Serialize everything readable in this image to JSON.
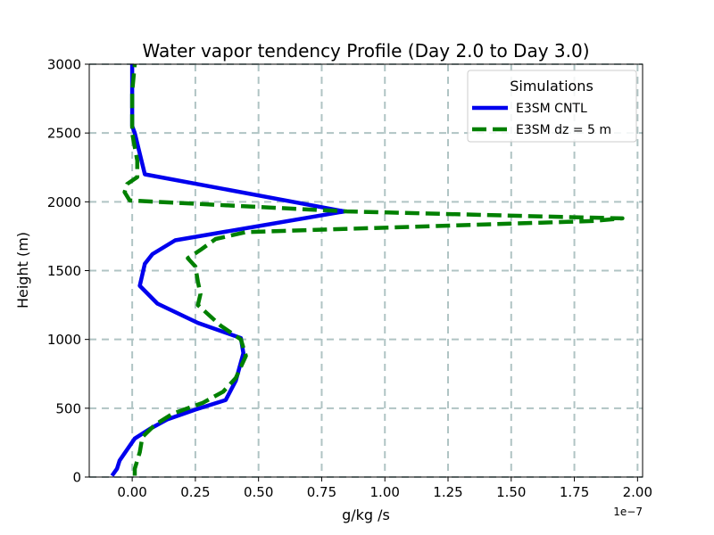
{
  "chart_data": {
    "type": "line",
    "title": "Water vapor tendency Profile (Day 2.0 to Day 3.0)",
    "xlabel": "g/kg /s",
    "ylabel": "Height (m)",
    "x_offset_label": "1e−7",
    "xlim": [
      -0.17,
      2.02
    ],
    "ylim": [
      0,
      3000
    ],
    "xticks": [
      0.0,
      0.25,
      0.5,
      0.75,
      1.0,
      1.25,
      1.5,
      1.75,
      2.0
    ],
    "xtick_labels": [
      "0.00",
      "0.25",
      "0.50",
      "0.75",
      "1.00",
      "1.25",
      "1.50",
      "1.75",
      "2.00"
    ],
    "yticks": [
      0,
      500,
      1000,
      1500,
      2000,
      2500,
      3000
    ],
    "ytick_labels": [
      "0",
      "500",
      "1000",
      "1500",
      "2000",
      "2500",
      "3000"
    ],
    "grid": true,
    "legend": {
      "title": "Simulations",
      "location": "upper right"
    },
    "series": [
      {
        "name": "E3SM CNTL",
        "color": "#0000ee",
        "style": "solid",
        "points": [
          [
            -0.08,
            10
          ],
          [
            -0.06,
            60
          ],
          [
            -0.05,
            120
          ],
          [
            -0.02,
            200
          ],
          [
            0.01,
            280
          ],
          [
            0.07,
            350
          ],
          [
            0.14,
            420
          ],
          [
            0.25,
            490
          ],
          [
            0.37,
            560
          ],
          [
            0.41,
            700
          ],
          [
            0.44,
            900
          ],
          [
            0.43,
            1010
          ],
          [
            0.26,
            1120
          ],
          [
            0.1,
            1260
          ],
          [
            0.03,
            1390
          ],
          [
            0.05,
            1550
          ],
          [
            0.08,
            1620
          ],
          [
            0.17,
            1720
          ],
          [
            0.84,
            1930
          ],
          [
            0.05,
            2200
          ],
          [
            0.03,
            2350
          ],
          [
            0.01,
            2500
          ],
          [
            0.0,
            2550
          ],
          [
            0.0,
            2900
          ],
          [
            0.0,
            3000
          ]
        ]
      },
      {
        "name": "E3SM dz = 5 m",
        "color": "#008000",
        "style": "dashed",
        "points": [
          [
            0.01,
            10
          ],
          [
            0.01,
            60
          ],
          [
            0.03,
            180
          ],
          [
            0.04,
            290
          ],
          [
            0.09,
            380
          ],
          [
            0.16,
            460
          ],
          [
            0.28,
            540
          ],
          [
            0.36,
            620
          ],
          [
            0.41,
            720
          ],
          [
            0.45,
            880
          ],
          [
            0.43,
            1000
          ],
          [
            0.35,
            1100
          ],
          [
            0.26,
            1250
          ],
          [
            0.27,
            1330
          ],
          [
            0.26,
            1420
          ],
          [
            0.25,
            1530
          ],
          [
            0.22,
            1590
          ],
          [
            0.27,
            1650
          ],
          [
            0.33,
            1730
          ],
          [
            0.45,
            1780
          ],
          [
            1.82,
            1860
          ],
          [
            1.94,
            1880
          ],
          [
            1.7,
            1890
          ],
          [
            0.85,
            1930
          ],
          [
            -0.01,
            2010
          ],
          [
            -0.03,
            2070
          ],
          [
            -0.02,
            2130
          ],
          [
            0.02,
            2180
          ],
          [
            0.02,
            2300
          ],
          [
            0.0,
            2500
          ],
          [
            0.0,
            2800
          ],
          [
            0.01,
            3000
          ]
        ]
      }
    ]
  }
}
